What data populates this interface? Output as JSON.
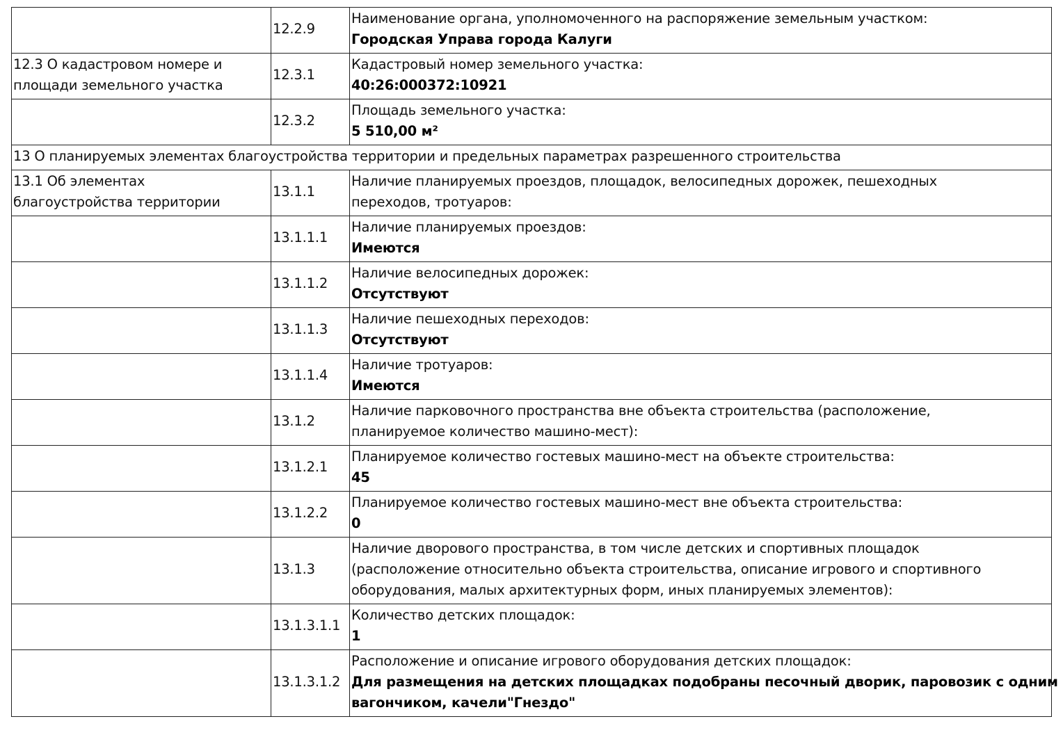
{
  "rows": [
    {
      "section": [],
      "code": "12.2.9",
      "label": [
        "Наименование органа, уполномоченного на распоряжение земельным участком:"
      ],
      "value": [
        "Городская Управа города Калуги"
      ]
    },
    {
      "section": [
        "12.3 О кадастровом номере и",
        "площади земельного участка"
      ],
      "code": "12.3.1",
      "label": [
        "Кадастровый номер земельного участка:"
      ],
      "value": [
        "40:26:000372:10921"
      ]
    },
    {
      "section": [],
      "code": "12.3.2",
      "label": [
        "Площадь земельного участка:"
      ],
      "value": [
        "5 510,00 м²"
      ]
    },
    {
      "heading": "13 О планируемых элементах благоустройства территории и предельных параметрах разрешенного строительства"
    },
    {
      "section": [
        "13.1 Об элементах",
        "благоустройства территории"
      ],
      "code": "13.1.1",
      "label": [
        "Наличие планируемых проездов, площадок, велосипедных дорожек, пешеходных",
        "переходов, тротуаров:"
      ],
      "value": []
    },
    {
      "section": [],
      "code": "13.1.1.1",
      "label": [
        "Наличие планируемых проездов:"
      ],
      "value": [
        "Имеются"
      ]
    },
    {
      "section": [],
      "code": "13.1.1.2",
      "label": [
        "Наличие велосипедных дорожек:"
      ],
      "value": [
        "Отсутствуют"
      ]
    },
    {
      "section": [],
      "code": "13.1.1.3",
      "label": [
        "Наличие пешеходных переходов:"
      ],
      "value": [
        "Отсутствуют"
      ]
    },
    {
      "section": [],
      "code": "13.1.1.4",
      "label": [
        "Наличие тротуаров:"
      ],
      "value": [
        "Имеются"
      ]
    },
    {
      "section": [],
      "code": "13.1.2",
      "label": [
        "Наличие парковочного пространства вне объекта строительства (расположение,",
        "планируемое количество машино-мест):"
      ],
      "value": []
    },
    {
      "section": [],
      "code": "13.1.2.1",
      "label": [
        "Планируемое количество гостевых машино-мест на объекте строительства:"
      ],
      "value": [
        "45"
      ]
    },
    {
      "section": [],
      "code": "13.1.2.2",
      "label": [
        "Планируемое количество гостевых машино-мест вне объекта строительства:"
      ],
      "value": [
        "0"
      ]
    },
    {
      "section": [],
      "code": "13.1.3",
      "label": [
        "Наличие дворового пространства, в том числе детских и спортивных площадок",
        "(расположение относительно объекта строительства, описание игрового и спортивного",
        "оборудования, малых архитектурных форм, иных планируемых элементов):"
      ],
      "value": []
    },
    {
      "section": [],
      "code": "13.1.3.1.1",
      "label": [
        "Количество детских площадок:"
      ],
      "value": [
        "1"
      ]
    },
    {
      "section": [],
      "code": "13.1.3.1.2",
      "label": [
        "Расположение и описание игрового оборудования детских площадок:"
      ],
      "value": [
        "Для размещения на детских площадках подобраны песочный дворик, паровозик с одним",
        "вагончиком, качели\"Гнездо\""
      ]
    }
  ]
}
